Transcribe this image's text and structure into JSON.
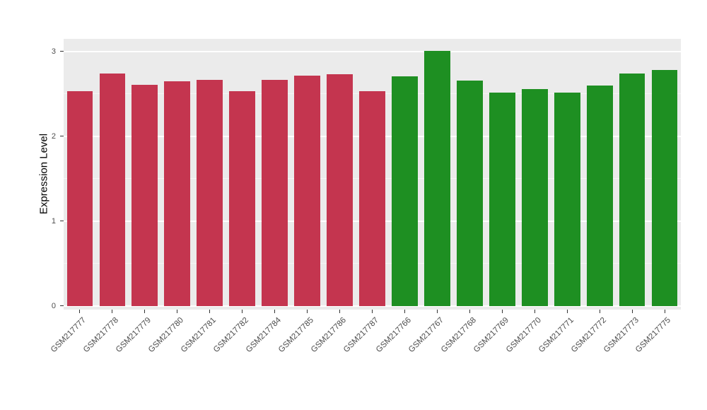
{
  "chart_data": {
    "type": "bar",
    "title": "",
    "xlabel": "",
    "ylabel": "Expression Level",
    "categories": [
      "GSM217777",
      "GSM217778",
      "GSM217779",
      "GSM217780",
      "GSM217781",
      "GSM217782",
      "GSM217784",
      "GSM217785",
      "GSM217786",
      "GSM217787",
      "GSM217766",
      "GSM217767",
      "GSM217768",
      "GSM217769",
      "GSM217770",
      "GSM217771",
      "GSM217772",
      "GSM217773",
      "GSM217775"
    ],
    "values": [
      2.53,
      2.74,
      2.61,
      2.65,
      2.67,
      2.53,
      2.67,
      2.72,
      2.73,
      2.53,
      2.71,
      3.01,
      2.66,
      2.52,
      2.56,
      2.52,
      2.6,
      2.74,
      2.78
    ],
    "colors": [
      "#C4354F",
      "#C4354F",
      "#C4354F",
      "#C4354F",
      "#C4354F",
      "#C4354F",
      "#C4354F",
      "#C4354F",
      "#C4354F",
      "#C4354F",
      "#1E8F22",
      "#1E8F22",
      "#1E8F22",
      "#1E8F22",
      "#1E8F22",
      "#1E8F22",
      "#1E8F22",
      "#1E8F22",
      "#1E8F22"
    ],
    "group_colors": {
      "group1": "#C4354F",
      "group2": "#1E8F22"
    },
    "yticks": [
      0,
      1,
      2,
      3
    ],
    "yticks_minor": [
      0.5,
      1.5,
      2.5
    ],
    "ylim": [
      -0.042,
      3.15
    ],
    "bar_width_ratio": 0.8,
    "legend": "none",
    "grid": "horizontal-white-on-gray",
    "panel_bg": "#EBEBEB",
    "grid_color": "#FFFFFF"
  }
}
